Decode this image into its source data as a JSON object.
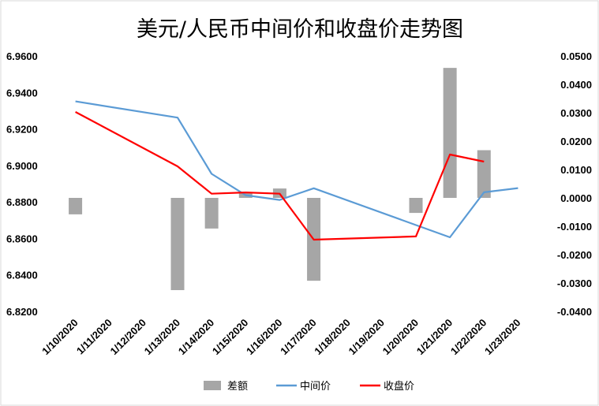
{
  "chart_data": {
    "type": "bar+line",
    "title": "美元/人民币中间价和收盘价走势图",
    "categories": [
      "1/10/2020",
      "1/11/2020",
      "1/12/2020",
      "1/13/2020",
      "1/14/2020",
      "1/15/2020",
      "1/16/2020",
      "1/17/2020",
      "1/18/2020",
      "1/19/2020",
      "1/20/2020",
      "1/21/2020",
      "1/22/2020",
      "1/23/2020"
    ],
    "left_axis": {
      "min": 6.82,
      "max": 6.96,
      "ticks": [
        "6.8200",
        "6.8400",
        "6.8600",
        "6.8800",
        "6.9000",
        "6.9200",
        "6.9400",
        "6.9600"
      ]
    },
    "right_axis": {
      "min": -0.04,
      "max": 0.05,
      "ticks": [
        "-0.0400",
        "-0.0300",
        "-0.0200",
        "-0.0100",
        "0.0000",
        "0.0100",
        "0.0200",
        "0.0300",
        "0.0400",
        "0.0500"
      ]
    },
    "series": [
      {
        "name": "差额",
        "kind": "bar",
        "axis": "right",
        "color": "#a6a6a6",
        "values": [
          -0.0058,
          null,
          null,
          -0.0325,
          -0.0108,
          0.0017,
          0.0033,
          -0.0292,
          null,
          null,
          -0.0053,
          0.0458,
          0.0168,
          null
        ]
      },
      {
        "name": "中间价",
        "kind": "line",
        "axis": "left",
        "color": "#5b9bd5",
        "values": [
          6.9351,
          null,
          null,
          6.9262,
          6.8954,
          6.8837,
          6.8811,
          6.8875,
          null,
          null,
          null,
          6.8606,
          6.8853,
          6.8876
        ]
      },
      {
        "name": "收盘价",
        "kind": "line",
        "axis": "left",
        "color": "#ff0000",
        "values": [
          6.9293,
          null,
          null,
          6.8995,
          6.8845,
          6.8852,
          6.8845,
          6.8593,
          null,
          null,
          6.8611,
          6.906,
          6.9021,
          null
        ]
      }
    ],
    "legend": "bottom",
    "grid": false
  }
}
